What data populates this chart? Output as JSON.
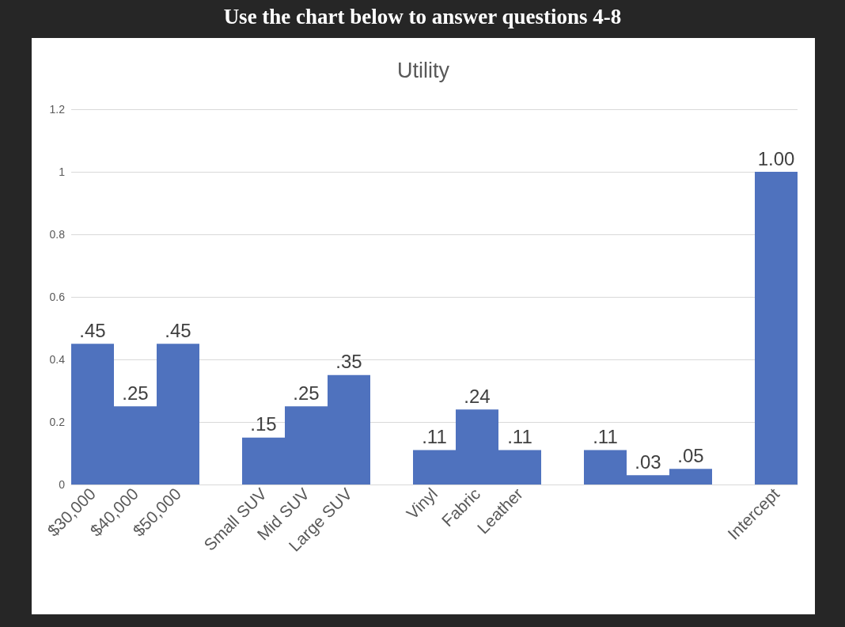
{
  "chart_data": {
    "type": "bar",
    "title": "Use the chart below to answer questions 4-8",
    "subtitle": "Utility",
    "categories": [
      "$30,000",
      "$40,000",
      "$50,000",
      null,
      "Small SUV",
      "Mid SUV",
      "Large SUV",
      null,
      "Vinyl",
      "Fabric",
      "Leather",
      null,
      null,
      null,
      null,
      null,
      "Intercept"
    ],
    "values": [
      0.45,
      0.25,
      0.45,
      null,
      0.15,
      0.25,
      0.35,
      null,
      0.11,
      0.24,
      0.11,
      null,
      0.11,
      0.03,
      0.05,
      null,
      1.0
    ],
    "value_labels": [
      ".45",
      ".25",
      ".45",
      null,
      ".15",
      ".25",
      ".35",
      null,
      ".11",
      ".24",
      ".11",
      null,
      ".11",
      ".03",
      ".05",
      null,
      "1.00"
    ],
    "color": "#4f72be",
    "ylim": [
      0,
      1.2
    ],
    "yticks": [
      0,
      0.2,
      0.4,
      0.6,
      0.8,
      1,
      1.2
    ],
    "grid": "y"
  }
}
